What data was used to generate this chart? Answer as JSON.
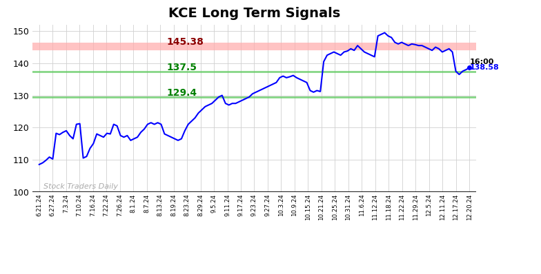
{
  "title": "KCE Long Term Signals",
  "title_fontsize": 14,
  "line_color": "blue",
  "line_width": 1.5,
  "background_color": "#ffffff",
  "grid_color": "#d0d0d0",
  "hline_red": 145.38,
  "hline_red_color": "#ffaaaa",
  "hline_green1": 137.5,
  "hline_green1_color": "#66cc66",
  "hline_green2": 129.4,
  "hline_green2_color": "#66cc66",
  "label_145": "145.38",
  "label_137": "137.5",
  "label_129": "129.4",
  "label_red_color": "darkred",
  "label_green_color": "green",
  "annotation_time": "16:00",
  "annotation_price": "138.58",
  "annotation_price_color": "blue",
  "annotation_time_color": "black",
  "watermark": "Stock Traders Daily",
  "watermark_color": "#aaaaaa",
  "ylim": [
    100,
    152
  ],
  "yticks": [
    100,
    110,
    120,
    130,
    140,
    150
  ],
  "x_labels": [
    "6.21.24",
    "6.27.24",
    "7.3.24",
    "7.10.24",
    "7.16.24",
    "7.22.24",
    "7.26.24",
    "8.1.24",
    "8.7.24",
    "8.13.24",
    "8.19.24",
    "8.23.24",
    "8.29.24",
    "9.5.24",
    "9.11.24",
    "9.17.24",
    "9.23.24",
    "9.27.24",
    "10.3.24",
    "10.9.24",
    "10.15.24",
    "10.21.24",
    "10.25.24",
    "10.31.24",
    "11.6.24",
    "11.12.24",
    "11.18.24",
    "11.22.24",
    "11.29.24",
    "12.5.24",
    "12.11.24",
    "12.17.24",
    "12.20.24"
  ],
  "prices": [
    108.5,
    109.0,
    109.8,
    110.8,
    110.2,
    118.2,
    117.8,
    118.5,
    119.0,
    117.5,
    116.5,
    121.0,
    121.2,
    110.5,
    111.0,
    113.5,
    115.0,
    118.0,
    117.5,
    117.0,
    118.2,
    118.0,
    121.0,
    120.5,
    117.5,
    117.0,
    117.5,
    116.0,
    116.5,
    117.0,
    118.5,
    119.5,
    121.0,
    121.5,
    121.0,
    121.5,
    121.0,
    118.0,
    117.5,
    117.0,
    116.5,
    116.0,
    116.5,
    119.0,
    121.0,
    122.0,
    123.0,
    124.5,
    125.5,
    126.5,
    127.0,
    127.5,
    128.5,
    129.5,
    130.0,
    127.5,
    127.0,
    127.5,
    127.5,
    128.0,
    128.5,
    129.0,
    129.5,
    130.5,
    131.0,
    131.5,
    132.0,
    132.5,
    133.0,
    133.5,
    134.0,
    135.5,
    136.0,
    135.5,
    135.8,
    136.2,
    135.5,
    135.0,
    134.5,
    134.0,
    131.5,
    131.0,
    131.5,
    131.2,
    140.5,
    142.5,
    143.0,
    143.5,
    143.0,
    142.5,
    143.5,
    143.8,
    144.5,
    144.0,
    145.5,
    144.5,
    143.5,
    143.0,
    142.5,
    142.0,
    148.5,
    149.0,
    149.5,
    148.5,
    148.0,
    146.5,
    146.0,
    146.5,
    146.0,
    145.5,
    146.0,
    145.8,
    145.5,
    145.5,
    145.0,
    144.5,
    144.0,
    145.0,
    144.5,
    143.5,
    144.0,
    144.5,
    143.5,
    137.5,
    136.5,
    137.5,
    138.0,
    138.58
  ]
}
